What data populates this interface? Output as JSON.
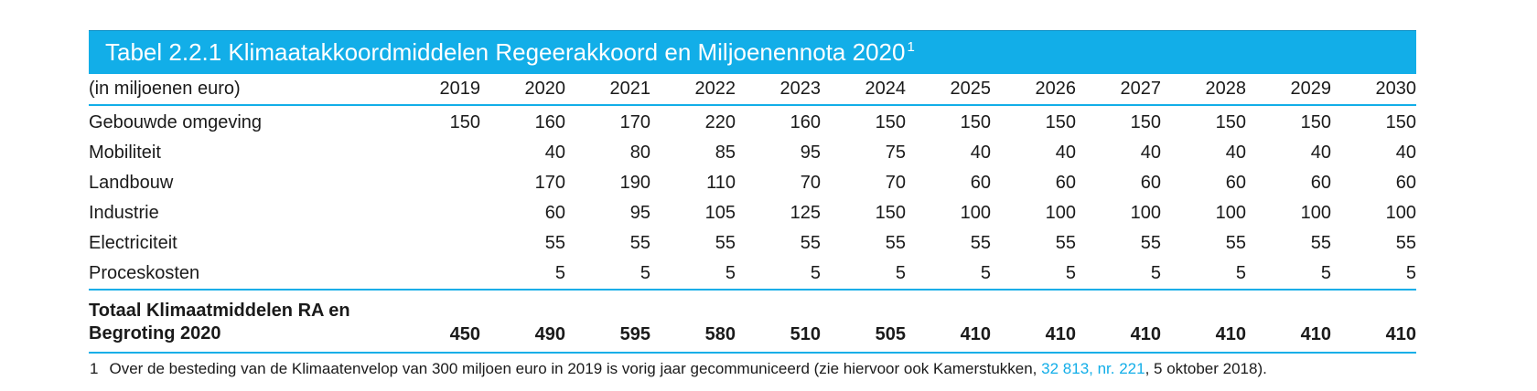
{
  "table": {
    "title": "Tabel 2.2.1 Klimaatakkoordmiddelen Regeerakkoord en Miljoenennota 2020",
    "title_sup": "1",
    "unit_label": "(in miljoenen euro)",
    "years": [
      "2019",
      "2020",
      "2021",
      "2022",
      "2023",
      "2024",
      "2025",
      "2026",
      "2027",
      "2028",
      "2029",
      "2030"
    ],
    "rows": [
      {
        "label": "Gebouwde omgeving",
        "values": [
          "150",
          "160",
          "170",
          "220",
          "160",
          "150",
          "150",
          "150",
          "150",
          "150",
          "150",
          "150"
        ]
      },
      {
        "label": "Mobiliteit",
        "values": [
          "",
          "40",
          "80",
          "85",
          "95",
          "75",
          "40",
          "40",
          "40",
          "40",
          "40",
          "40"
        ]
      },
      {
        "label": "Landbouw",
        "values": [
          "",
          "170",
          "190",
          "110",
          "70",
          "70",
          "60",
          "60",
          "60",
          "60",
          "60",
          "60"
        ]
      },
      {
        "label": "Industrie",
        "values": [
          "",
          "60",
          "95",
          "105",
          "125",
          "150",
          "100",
          "100",
          "100",
          "100",
          "100",
          "100"
        ]
      },
      {
        "label": "Electriciteit",
        "values": [
          "",
          "55",
          "55",
          "55",
          "55",
          "55",
          "55",
          "55",
          "55",
          "55",
          "55",
          "55"
        ]
      },
      {
        "label": "Proceskosten",
        "values": [
          "",
          "5",
          "5",
          "5",
          "5",
          "5",
          "5",
          "5",
          "5",
          "5",
          "5",
          "5"
        ]
      }
    ],
    "total": {
      "label": "Totaal Klimaatmiddelen RA en Begroting 2020",
      "values": [
        "450",
        "490",
        "595",
        "580",
        "510",
        "505",
        "410",
        "410",
        "410",
        "410",
        "410",
        "410"
      ]
    }
  },
  "footnote": {
    "number": "1",
    "text_before": "Over de besteding van de Klimaatenvelop van 300 miljoen euro in 2019 is vorig jaar gecommuniceerd (zie hiervoor ook Kamerstukken,",
    "link_text": "32 813, nr. 221",
    "text_after": ", 5 oktober 2018)."
  },
  "colors": {
    "accent": "#12aee8",
    "title_text": "#ffffff",
    "link": "#12aee8"
  }
}
